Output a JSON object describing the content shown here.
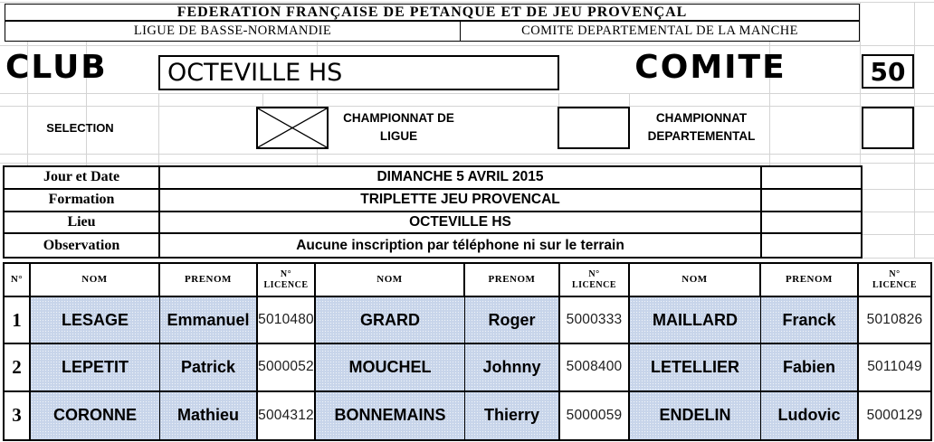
{
  "header": {
    "title": "FEDERATION FRANÇAISE DE PETANQUE ET DE JEU PROVENÇAL",
    "ligue": "LIGUE DE BASSE-NORMANDIE",
    "comite_departemental": "COMITE DEPARTEMENTAL DE LA MANCHE"
  },
  "club": {
    "label": "CLUB",
    "value": "OCTEVILLE HS"
  },
  "comite": {
    "label": "COMITE",
    "value": "50"
  },
  "selection": {
    "label": "SELECTION",
    "options": [
      {
        "label": "CHAMPIONNAT DE LIGUE",
        "checked": true
      },
      {
        "label": "CHAMPIONNAT DEPARTEMENTAL",
        "checked": false
      }
    ]
  },
  "details": {
    "rows": [
      {
        "label": "Jour et Date",
        "value": "DIMANCHE 5 AVRIL 2015"
      },
      {
        "label": "Formation",
        "value": "TRIPLETTE JEU PROVENCAL"
      },
      {
        "label": "Lieu",
        "value": "OCTEVILLE HS"
      },
      {
        "label": "Observation",
        "value": "Aucune inscription par téléphone ni sur le terrain"
      }
    ]
  },
  "players_table": {
    "headers": {
      "num": "N°",
      "nom": "NOM",
      "prenom": "PRENOM",
      "licence_l1": "N°",
      "licence_l2": "LICENCE"
    },
    "rows": [
      {
        "num": "1",
        "players": [
          {
            "nom": "LESAGE",
            "prenom": "Emmanuel",
            "licence": "5010480"
          },
          {
            "nom": "GRARD",
            "prenom": "Roger",
            "licence": "5000333"
          },
          {
            "nom": "MAILLARD",
            "prenom": "Franck",
            "licence": "5010826"
          }
        ]
      },
      {
        "num": "2",
        "players": [
          {
            "nom": "LEPETIT",
            "prenom": "Patrick",
            "licence": "5000052"
          },
          {
            "nom": "MOUCHEL",
            "prenom": "Johnny",
            "licence": "5008400"
          },
          {
            "nom": "LETELLIER",
            "prenom": "Fabien",
            "licence": "5011049"
          }
        ]
      },
      {
        "num": "3",
        "players": [
          {
            "nom": "CORONNE",
            "prenom": "Mathieu",
            "licence": "5004312"
          },
          {
            "nom": "BONNEMAINS",
            "prenom": "Thierry",
            "licence": "5000059"
          },
          {
            "nom": "ENDELIN",
            "prenom": "Ludovic",
            "licence": "5000129"
          }
        ]
      }
    ]
  },
  "colors": {
    "row_fill_blue": "#c7d4ea",
    "gridline": "#d4d4d4",
    "border": "#000000"
  }
}
